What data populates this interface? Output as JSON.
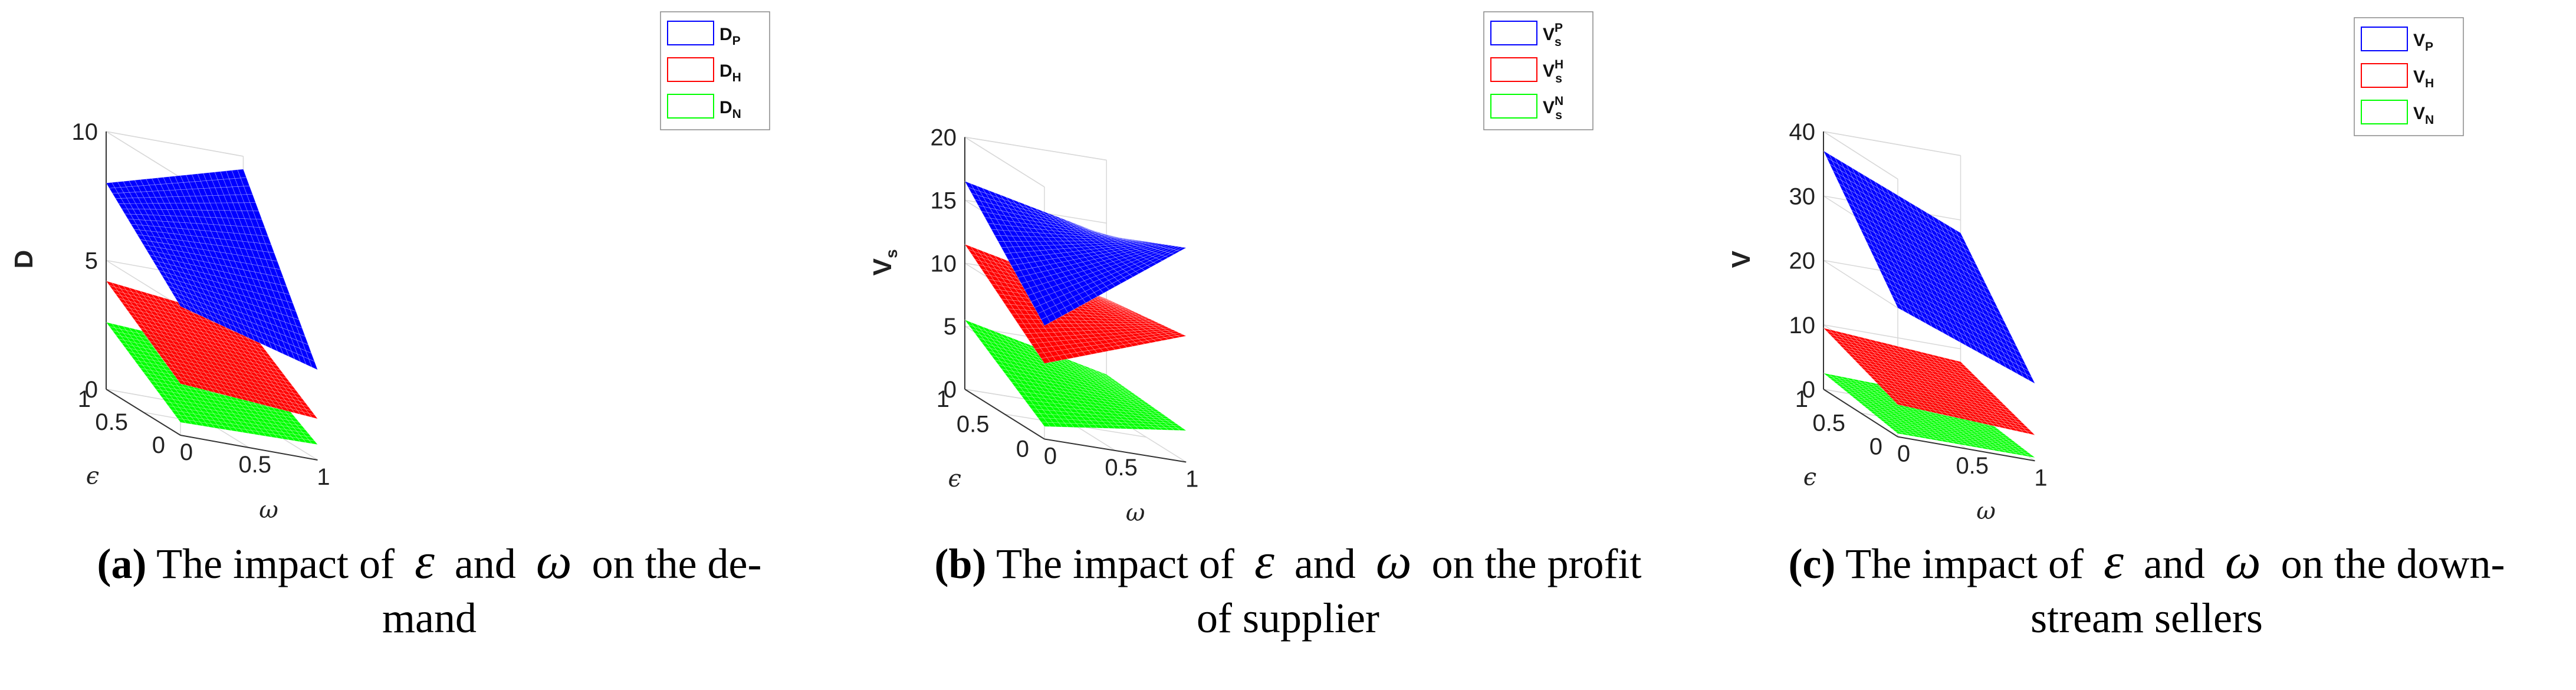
{
  "chart_data": [
    {
      "type": "surface",
      "zlabel": "D",
      "xlabel": "ω",
      "ylabel": "ϵ",
      "xlim": [
        0,
        1
      ],
      "ylim": [
        0,
        1
      ],
      "zlim": [
        0,
        10
      ],
      "xticks": [
        "0",
        "0.5",
        "1"
      ],
      "yticks": [
        "0",
        "0.5",
        "1"
      ],
      "zticks": [
        "0",
        "5",
        "10"
      ],
      "grid": true,
      "legend_position": "top-right",
      "series": [
        {
          "name": "D_P",
          "label_main": "D",
          "label_sub": "P",
          "label_sup": "",
          "color": "#0000ff",
          "corners": {
            "w0e0": 5.0,
            "w1e0": 3.5,
            "w0e1": 8.0,
            "w1e1": 9.5
          }
        },
        {
          "name": "D_H",
          "label_main": "D",
          "label_sub": "H",
          "label_sup": "",
          "color": "#ff0000",
          "corners": {
            "w0e0": 2.0,
            "w1e0": 1.6,
            "w0e1": 4.2,
            "w1e1": 3.6
          }
        },
        {
          "name": "D_N",
          "label_main": "D",
          "label_sub": "N",
          "label_sup": "",
          "color": "#00ff00",
          "corners": {
            "w0e0": 0.5,
            "w1e0": 0.6,
            "w0e1": 2.6,
            "w1e1": 2.3
          }
        }
      ]
    },
    {
      "type": "surface",
      "zlabel": "V",
      "zlabel_sub": "s",
      "xlabel": "ω",
      "ylabel": "ϵ",
      "xlim": [
        0,
        1
      ],
      "ylim": [
        0,
        1
      ],
      "zlim": [
        0,
        20
      ],
      "xticks": [
        "0",
        "0.5",
        "1"
      ],
      "yticks": [
        "0",
        "0.5",
        "1"
      ],
      "zticks": [
        "0",
        "5",
        "10",
        "15",
        "20"
      ],
      "grid": true,
      "legend_position": "top-right",
      "series": [
        {
          "name": "V_s^P",
          "label_main": "V",
          "label_sub": "s",
          "label_sup": "P",
          "color": "#0000ff",
          "corners": {
            "w0e0": 9.0,
            "w1e0": 17.0,
            "w0e1": 16.5,
            "w1e1": 14.0
          }
        },
        {
          "name": "V_s^H",
          "label_main": "V",
          "label_sub": "s",
          "label_sup": "H",
          "color": "#ff0000",
          "corners": {
            "w0e0": 6.0,
            "w1e0": 10.0,
            "w0e1": 11.5,
            "w1e1": 9.0
          }
        },
        {
          "name": "V_s^N",
          "label_main": "V",
          "label_sub": "s",
          "label_sup": "N",
          "color": "#00ff00",
          "corners": {
            "w0e0": 1.0,
            "w1e0": 2.5,
            "w0e1": 5.5,
            "w1e1": 3.0
          }
        }
      ]
    },
    {
      "type": "surface",
      "zlabel": "V",
      "xlabel": "ω",
      "ylabel": "ϵ",
      "xlim": [
        0,
        1
      ],
      "ylim": [
        0,
        1
      ],
      "zlim": [
        0,
        40
      ],
      "xticks": [
        "0",
        "0.5",
        "1"
      ],
      "yticks": [
        "0",
        "0.5",
        "1"
      ],
      "zticks": [
        "0",
        "10",
        "20",
        "30",
        "40"
      ],
      "grid": true,
      "legend_position": "top-right",
      "series": [
        {
          "name": "V_P",
          "label_main": "V",
          "label_sub": "P",
          "label_sup": "",
          "color": "#0000ff",
          "corners": {
            "w0e0": 20.0,
            "w1e0": 12.0,
            "w0e1": 37.0,
            "w1e1": 28.0
          }
        },
        {
          "name": "V_H",
          "label_main": "V",
          "label_sub": "H",
          "label_sup": "",
          "color": "#ff0000",
          "corners": {
            "w0e0": 5.0,
            "w1e0": 4.0,
            "w0e1": 9.5,
            "w1e1": 8.0
          }
        },
        {
          "name": "V_N",
          "label_main": "V",
          "label_sub": "N",
          "label_sup": "",
          "color": "#00ff00",
          "corners": {
            "w0e0": 0.5,
            "w1e0": 0.5,
            "w0e1": 2.5,
            "w1e1": 2.0
          }
        }
      ]
    }
  ],
  "captions": [
    {
      "tag": "(a)",
      "text_pre": "The impact of",
      "sym1": "ε",
      "and": "and",
      "sym2": "ω",
      "text_post": "on the de-",
      "line2": "mand"
    },
    {
      "tag": "(b)",
      "text_pre": "The impact of",
      "sym1": "ε",
      "and": "and",
      "sym2": "ω",
      "text_post": "on the profit",
      "line2": "of supplier"
    },
    {
      "tag": "(c)",
      "text_pre": "The impact of",
      "sym1": "ε",
      "and": "and",
      "sym2": "ω",
      "text_post": "on the down-",
      "line2": "stream sellers"
    }
  ]
}
